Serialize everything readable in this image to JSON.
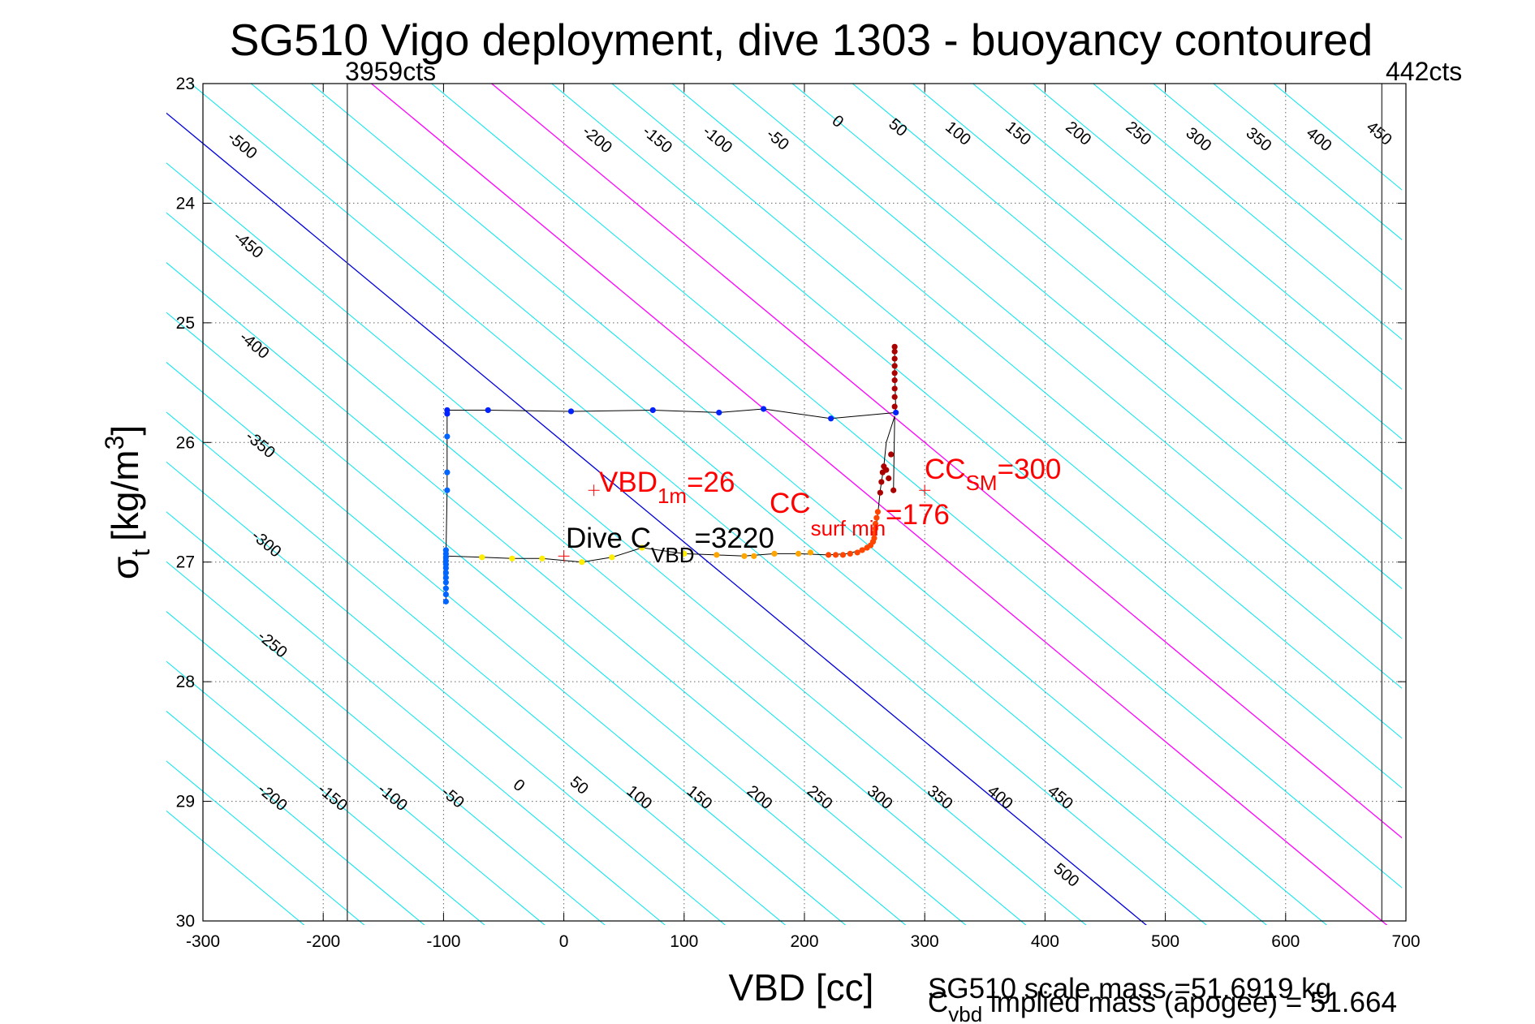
{
  "chart_data": {
    "type": "scatter",
    "title": "SG510 Vigo deployment, dive 1303 - buoyancy contoured",
    "xlabel": "VBD [cc]",
    "ylabel": {
      "main": "σ",
      "sub": "t",
      "unit": "[kg/m",
      "sup": "3",
      "close": "]"
    },
    "xlim": [
      -300,
      700
    ],
    "ylim": [
      23,
      30
    ],
    "y_reversed": true,
    "grid": true,
    "x_ticks": [
      -300,
      -200,
      -100,
      0,
      100,
      200,
      300,
      400,
      500,
      600,
      700
    ],
    "x_tick_labels": [
      "-300",
      "-200",
      "-100",
      "0",
      "100",
      "200",
      "300",
      "400",
      "500",
      "600",
      "700"
    ],
    "y_ticks": [
      23,
      24,
      25,
      26,
      27,
      28,
      29,
      30
    ],
    "y_tick_labels": [
      "23",
      "24",
      "25",
      "26",
      "27",
      "28",
      "29",
      "30"
    ],
    "vbd_limits": [
      {
        "x": -180,
        "label": "3959cts"
      },
      {
        "x": 680,
        "label": "442cts"
      }
    ],
    "contours": {
      "slope_cc_per_sigma": 120,
      "reference_sigma": 26,
      "color": "#00e5ee",
      "start": -700,
      "end": 950,
      "step": 50,
      "special_lines": [
        {
          "buoyancy": 0,
          "color": "#0000dd"
        },
        {
          "buoyancy": 200,
          "color": "#ff00ff"
        },
        {
          "buoyancy": 300,
          "color": "#ff00ff"
        }
      ],
      "top_labels": [
        {
          "text": "-500",
          "x": -270,
          "y": 23.55
        },
        {
          "text": "-450",
          "x": -265,
          "y": 24.38
        },
        {
          "text": "-400",
          "x": -260,
          "y": 25.22
        },
        {
          "text": "-350",
          "x": -255,
          "y": 26.05
        },
        {
          "text": "-300",
          "x": -250,
          "y": 26.88
        },
        {
          "text": "-250",
          "x": -245,
          "y": 27.72
        },
        {
          "text": "-200",
          "x": 25,
          "y": 23.5
        },
        {
          "text": "-150",
          "x": 75,
          "y": 23.5
        },
        {
          "text": "-100",
          "x": 125,
          "y": 23.5
        },
        {
          "text": "-50",
          "x": 175,
          "y": 23.5
        },
        {
          "text": "0",
          "x": 225,
          "y": 23.35
        },
        {
          "text": "50",
          "x": 275,
          "y": 23.4
        },
        {
          "text": "100",
          "x": 325,
          "y": 23.45
        },
        {
          "text": "150",
          "x": 375,
          "y": 23.45
        },
        {
          "text": "200",
          "x": 425,
          "y": 23.45
        },
        {
          "text": "250",
          "x": 475,
          "y": 23.45
        },
        {
          "text": "300",
          "x": 525,
          "y": 23.5
        },
        {
          "text": "350",
          "x": 575,
          "y": 23.5
        },
        {
          "text": "400",
          "x": 625,
          "y": 23.5
        },
        {
          "text": "450",
          "x": 675,
          "y": 23.45
        },
        {
          "text": "-200",
          "x": -245,
          "y": 29.0
        },
        {
          "text": "-150",
          "x": -195,
          "y": 29.0
        },
        {
          "text": "-100",
          "x": -145,
          "y": 29.0
        },
        {
          "text": "-50",
          "x": -95,
          "y": 29.0
        },
        {
          "text": "0",
          "x": -40,
          "y": 28.9
        },
        {
          "text": "50",
          "x": 10,
          "y": 28.9
        },
        {
          "text": "100",
          "x": 60,
          "y": 29.0
        },
        {
          "text": "150",
          "x": 110,
          "y": 29.0
        },
        {
          "text": "200",
          "x": 160,
          "y": 29.0
        },
        {
          "text": "250",
          "x": 210,
          "y": 29.0
        },
        {
          "text": "300",
          "x": 260,
          "y": 29.0
        },
        {
          "text": "350",
          "x": 310,
          "y": 29.0
        },
        {
          "text": "400",
          "x": 360,
          "y": 29.0
        },
        {
          "text": "450",
          "x": 410,
          "y": 29.0
        },
        {
          "text": "500",
          "x": 415,
          "y": 29.65
        }
      ]
    },
    "series": [
      {
        "kind": "trace",
        "color": "#000000",
        "points": [
          [
            275,
            25.2
          ],
          [
            275,
            25.4
          ],
          [
            276,
            25.75
          ],
          [
            222,
            25.8
          ],
          [
            166,
            25.72
          ],
          [
            129,
            25.75
          ],
          [
            74,
            25.73
          ],
          [
            6,
            25.74
          ],
          [
            -63,
            25.73
          ],
          [
            -97,
            25.73
          ],
          [
            -97,
            25.78
          ],
          [
            -97,
            25.95
          ],
          [
            -97,
            26.25
          ],
          [
            -97,
            26.4
          ],
          [
            -98,
            26.95
          ],
          [
            -98,
            27.33
          ],
          [
            -98,
            26.95
          ],
          [
            -68,
            26.96
          ],
          [
            -43,
            26.97
          ],
          [
            -18,
            26.97
          ],
          [
            15,
            27.0
          ],
          [
            40,
            26.96
          ],
          [
            65,
            26.88
          ],
          [
            100,
            26.93
          ],
          [
            127,
            26.94
          ],
          [
            150,
            26.95
          ],
          [
            175,
            26.93
          ],
          [
            195,
            26.93
          ],
          [
            220,
            26.94
          ],
          [
            235,
            26.93
          ],
          [
            248,
            26.9
          ],
          [
            257,
            26.85
          ],
          [
            259,
            26.75
          ],
          [
            261,
            26.6
          ],
          [
            263,
            26.4
          ],
          [
            266,
            26.2
          ],
          [
            268,
            26.0
          ],
          [
            275,
            25.78
          ],
          [
            274,
            26.4
          ]
        ]
      },
      {
        "kind": "points",
        "color": "#0022ff",
        "points": [
          [
            -63,
            25.73
          ],
          [
            6,
            25.74
          ],
          [
            74,
            25.73
          ],
          [
            129,
            25.75
          ],
          [
            166,
            25.72
          ],
          [
            222,
            25.8
          ],
          [
            276,
            25.75
          ],
          [
            -97,
            25.73
          ],
          [
            -97,
            25.76
          ]
        ]
      },
      {
        "kind": "points",
        "color": "#0066ff",
        "points": [
          [
            -97,
            25.95
          ],
          [
            -97,
            26.25
          ],
          [
            -97,
            26.4
          ],
          [
            -98,
            26.9
          ],
          [
            -98,
            26.93
          ],
          [
            -98,
            26.96
          ],
          [
            -98,
            26.99
          ],
          [
            -98,
            27.02
          ],
          [
            -98,
            27.05
          ],
          [
            -98,
            27.09
          ],
          [
            -98,
            27.13
          ],
          [
            -98,
            27.17
          ],
          [
            -98,
            27.22
          ],
          [
            -98,
            27.27
          ],
          [
            -98,
            27.33
          ]
        ]
      },
      {
        "kind": "points",
        "color": "#ffee00",
        "points": [
          [
            -68,
            26.96
          ],
          [
            -43,
            26.97
          ],
          [
            -18,
            26.97
          ],
          [
            15,
            27.0
          ],
          [
            40,
            26.96
          ],
          [
            65,
            26.88
          ],
          [
            100,
            26.93
          ]
        ]
      },
      {
        "kind": "points",
        "color": "#ffa500",
        "points": [
          [
            127,
            26.94
          ],
          [
            150,
            26.95
          ],
          [
            158,
            26.95
          ],
          [
            175,
            26.93
          ],
          [
            195,
            26.93
          ],
          [
            205,
            26.92
          ]
        ]
      },
      {
        "kind": "points",
        "color": "#ff4500",
        "points": [
          [
            220,
            26.94
          ],
          [
            226,
            26.94
          ],
          [
            232,
            26.94
          ],
          [
            238,
            26.93
          ],
          [
            244,
            26.92
          ],
          [
            248,
            26.9
          ],
          [
            252,
            26.88
          ],
          [
            255,
            26.86
          ],
          [
            257,
            26.83
          ],
          [
            258,
            26.8
          ],
          [
            258,
            26.76
          ],
          [
            259,
            26.72
          ],
          [
            259,
            26.68
          ],
          [
            260,
            26.63
          ],
          [
            261,
            26.58
          ]
        ]
      },
      {
        "kind": "points",
        "color": "#aa0000",
        "points": [
          [
            263,
            26.42
          ],
          [
            264,
            26.33
          ],
          [
            265,
            26.25
          ],
          [
            266,
            26.2
          ],
          [
            268,
            26.23
          ],
          [
            270,
            26.3
          ],
          [
            272,
            26.1
          ],
          [
            274,
            26.4
          ],
          [
            275,
            25.62
          ],
          [
            275,
            25.7
          ],
          [
            275,
            25.55
          ],
          [
            275,
            25.48
          ],
          [
            275,
            25.42
          ],
          [
            275,
            25.36
          ],
          [
            275,
            25.3
          ],
          [
            275,
            25.24
          ],
          [
            275,
            25.2
          ]
        ]
      }
    ],
    "markers": [
      {
        "label": "VBD_1m",
        "x": 25,
        "y": 26.4,
        "color": "#ff0000"
      },
      {
        "label": "CC_SM",
        "x": 300,
        "y": 26.4,
        "color": "#ff0000"
      },
      {
        "label": "Dive C_VBD",
        "x": 0,
        "y": 26.95,
        "color": "#ff0000"
      }
    ],
    "annotations": [
      {
        "id": "vbd1m",
        "color": "#ff0000",
        "base": "VBD",
        "sub": "1m",
        "rest": "=26"
      },
      {
        "id": "ccsurf",
        "color": "#ff0000",
        "base": "CC",
        "sub": "surf min",
        "rest": "=176"
      },
      {
        "id": "ccsm",
        "color": "#ff0000",
        "base": "CC",
        "sub": "SM",
        "rest": "=300"
      },
      {
        "id": "divecvbd",
        "color": "#000000",
        "base": "Dive C",
        "sub": "VBD",
        "rest": "=3220"
      }
    ],
    "footer": {
      "line1": "SG510 scale mass =51.6919 kg",
      "line2_base": "C",
      "line2_sub": "vbd",
      "line2_rest": " implied mass (apogee) = 51.664"
    }
  }
}
